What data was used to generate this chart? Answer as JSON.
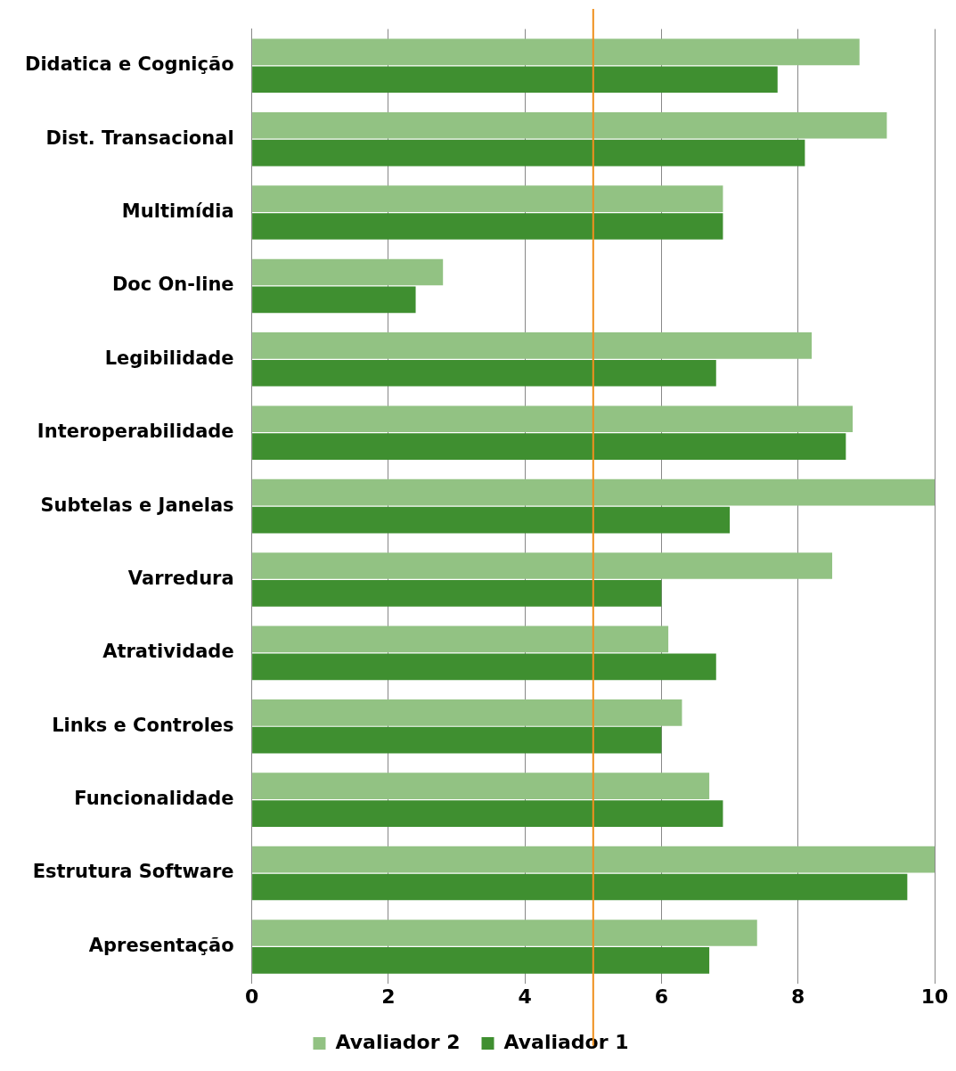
{
  "chart_data": {
    "type": "bar",
    "orientation": "horizontal",
    "categories": [
      "Didatica e Cognição",
      "Dist. Transacional",
      "Multimídia",
      "Doc On-line",
      "Legibilidade",
      "Interoperabilidade",
      "Subtelas e Janelas",
      "Varredura",
      "Atratividade",
      "Links e Controles",
      "Funcionalidade",
      "Estrutura Software",
      "Apresentação"
    ],
    "series": [
      {
        "name": "Avaliador 2",
        "color": "#92c283",
        "values": [
          8.9,
          9.3,
          6.9,
          2.8,
          8.2,
          8.8,
          10,
          8.5,
          6.1,
          6.3,
          6.7,
          10,
          7.4
        ]
      },
      {
        "name": "Avaliador 1",
        "color": "#3f8f30",
        "values": [
          7.7,
          8.1,
          6.9,
          2.4,
          6.8,
          8.7,
          7.0,
          6.0,
          6.8,
          6.0,
          6.9,
          9.6,
          6.7
        ]
      }
    ],
    "xlim": [
      0,
      10
    ],
    "xticks": [
      0,
      2,
      4,
      6,
      8,
      10
    ],
    "ref_lines": [
      {
        "axis": "x",
        "value": 5,
        "color": "#f0901e"
      }
    ],
    "grid": "x",
    "legend": "bottom"
  }
}
